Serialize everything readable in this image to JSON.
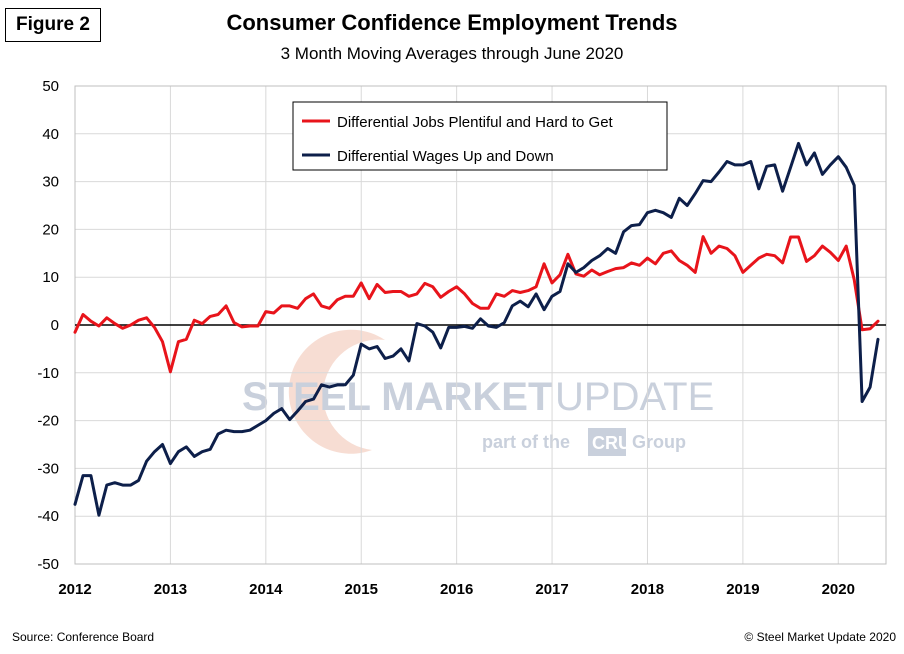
{
  "figure_label": "Figure 2",
  "source": "Source: Conference Board",
  "copyright": "© Steel Market Update 2020",
  "watermark": {
    "line1_bold": "STEEL MARKET",
    "line1_light": "UPDATE",
    "line2_prefix": "part of the",
    "line2_badge": "CRU",
    "line2_suffix": "Group"
  },
  "colors": {
    "jobs": "#e8141b",
    "wages": "#0d1f4a",
    "grid": "#d9d9d9",
    "zero": "#000000",
    "watermark_text": "#c9d0dc",
    "watermark_swoosh": "#f4cfc0"
  },
  "chart_data": {
    "type": "line",
    "title": "Consumer Confidence Employment Trends",
    "subtitle": "3 Month Moving Averages through June 2020",
    "xlabel": "",
    "ylabel": "",
    "ylim": [
      -50,
      50
    ],
    "yticks": [
      50,
      40,
      30,
      20,
      10,
      0,
      -10,
      -20,
      -30,
      -40,
      -50
    ],
    "xlim": [
      2012.0,
      2020.5
    ],
    "xticks": [
      "2012",
      "2013",
      "2014",
      "2015",
      "2016",
      "2017",
      "2018",
      "2019",
      "2020"
    ],
    "grid": true,
    "legend_position": "top-center",
    "x_start": 2012.0,
    "x_step": 0.08333,
    "series": [
      {
        "name": "Differential Jobs Plentiful and Hard to Get",
        "color_key": "jobs",
        "values": [
          -1.5,
          2.2,
          0.8,
          -0.2,
          1.5,
          0.3,
          -0.7,
          0.0,
          1.0,
          1.5,
          -0.5,
          -3.5,
          -9.8,
          -3.5,
          -3.0,
          1.0,
          0.3,
          1.8,
          2.2,
          4.0,
          0.5,
          -0.4,
          -0.2,
          -0.2,
          2.8,
          2.5,
          4.0,
          4.0,
          3.5,
          5.5,
          6.5,
          4.0,
          3.5,
          5.3,
          6.0,
          6.0,
          8.8,
          5.5,
          8.5,
          6.8,
          7.0,
          7.0,
          6.0,
          6.5,
          8.7,
          8.0,
          5.8,
          7.0,
          8.0,
          6.5,
          4.5,
          3.5,
          3.5,
          6.5,
          6.0,
          7.2,
          6.8,
          7.2,
          8.0,
          12.8,
          8.8,
          10.5,
          14.8,
          10.7,
          10.2,
          11.5,
          10.5,
          11.2,
          11.8,
          12.0,
          13.0,
          12.5,
          14.0,
          12.8,
          15.0,
          15.5,
          13.5,
          12.5,
          11.0,
          18.5,
          15.0,
          16.5,
          16.0,
          14.5,
          11.0,
          12.5,
          14.0,
          14.8,
          14.5,
          13.0,
          18.4,
          18.4,
          13.3,
          14.5,
          16.5,
          15.2,
          13.5,
          16.5,
          9.5,
          -1.0,
          -0.8,
          0.8
        ]
      },
      {
        "name": "Differential Wages Up and Down",
        "color_key": "wages",
        "values": [
          -37.5,
          -31.5,
          -31.5,
          -39.8,
          -33.5,
          -33.0,
          -33.5,
          -33.5,
          -32.5,
          -28.5,
          -26.5,
          -25.0,
          -29.0,
          -26.5,
          -25.5,
          -27.5,
          -26.5,
          -26.0,
          -22.8,
          -22.0,
          -22.3,
          -22.3,
          -22.0,
          -21.0,
          -20.0,
          -18.5,
          -17.5,
          -19.8,
          -18.0,
          -16.0,
          -15.5,
          -12.5,
          -13.0,
          -12.5,
          -12.5,
          -10.5,
          -4.0,
          -5.0,
          -4.5,
          -7.0,
          -6.5,
          -5.0,
          -7.5,
          0.3,
          -0.2,
          -1.5,
          -4.8,
          -0.5,
          -0.5,
          -0.3,
          -0.7,
          1.3,
          -0.2,
          -0.5,
          0.5,
          4.0,
          5.0,
          3.8,
          6.5,
          3.2,
          6.0,
          7.0,
          12.8,
          11.0,
          12.0,
          13.5,
          14.5,
          16.0,
          15.0,
          19.5,
          20.8,
          21.0,
          23.5,
          24.0,
          23.5,
          22.5,
          26.5,
          25.0,
          27.5,
          30.2,
          30.0,
          32.0,
          34.2,
          33.5,
          33.5,
          34.2,
          28.5,
          33.2,
          33.5,
          28.0,
          33.0,
          38.0,
          33.5,
          36.0,
          31.5,
          33.5,
          35.2,
          33.0,
          29.2,
          -16.0,
          -13.0,
          -3.0
        ]
      }
    ]
  }
}
